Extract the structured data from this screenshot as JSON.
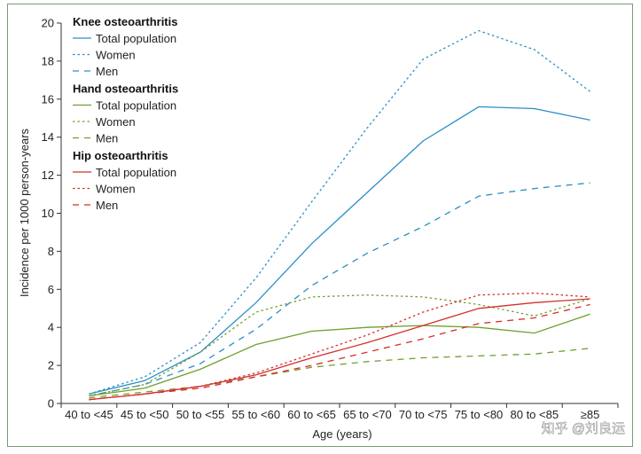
{
  "chart_data": {
    "type": "line",
    "title": "",
    "xlabel": "Age (years)",
    "ylabel": "Incidence per 1000 person-years",
    "ylim": [
      0,
      20
    ],
    "yticks": [
      0,
      2,
      4,
      6,
      8,
      10,
      12,
      14,
      16,
      18,
      20
    ],
    "categories": [
      "40 to <45",
      "45 to <50",
      "50 to <55",
      "55 to <60",
      "60 to <65",
      "65 to <70",
      "70 to <75",
      "75 to <80",
      "80 to <85",
      "≥85"
    ],
    "legend_position": "top-left",
    "groups": [
      {
        "name": "Knee osteoarthritis",
        "color": "#2a8fc6",
        "series": [
          {
            "name": "Total population",
            "dash": "solid",
            "values": [
              0.5,
              1.2,
              2.7,
              5.3,
              8.4,
              11.1,
              13.8,
              15.6,
              15.5,
              14.9
            ]
          },
          {
            "name": "Women",
            "dash": "dotted",
            "values": [
              0.5,
              1.4,
              3.2,
              6.6,
              10.6,
              14.5,
              18.1,
              19.6,
              18.6,
              16.4
            ]
          },
          {
            "name": "Men",
            "dash": "dashed",
            "values": [
              0.4,
              1.0,
              2.1,
              3.9,
              6.2,
              7.9,
              9.3,
              10.9,
              11.3,
              11.6
            ]
          }
        ]
      },
      {
        "name": "Hand osteoarthritis",
        "color": "#6f9f2e",
        "series": [
          {
            "name": "Total population",
            "dash": "solid",
            "values": [
              0.4,
              0.8,
              1.8,
              3.1,
              3.8,
              4.0,
              4.1,
              4.0,
              3.7,
              4.7
            ]
          },
          {
            "name": "Women",
            "dash": "dotted",
            "values": [
              0.4,
              1.0,
              2.7,
              4.8,
              5.6,
              5.7,
              5.6,
              5.2,
              4.6,
              5.5
            ]
          },
          {
            "name": "Men",
            "dash": "dashed",
            "values": [
              0.3,
              0.6,
              0.9,
              1.4,
              1.9,
              2.2,
              2.4,
              2.5,
              2.6,
              2.9
            ]
          }
        ]
      },
      {
        "name": "Hip osteoarthritis",
        "color": "#d42f2a",
        "series": [
          {
            "name": "Total population",
            "dash": "solid",
            "values": [
              0.2,
              0.5,
              0.9,
              1.5,
              2.4,
              3.2,
              4.1,
              5.0,
              5.3,
              5.5
            ]
          },
          {
            "name": "Women",
            "dash": "dotted",
            "values": [
              0.2,
              0.5,
              0.9,
              1.6,
              2.6,
              3.6,
              4.8,
              5.7,
              5.8,
              5.6
            ]
          },
          {
            "name": "Men",
            "dash": "dashed",
            "values": [
              0.2,
              0.5,
              0.8,
              1.4,
              2.0,
              2.7,
              3.4,
              4.2,
              4.5,
              5.2
            ]
          }
        ]
      }
    ]
  },
  "watermark": {
    "text": "知乎 @刘良运"
  }
}
